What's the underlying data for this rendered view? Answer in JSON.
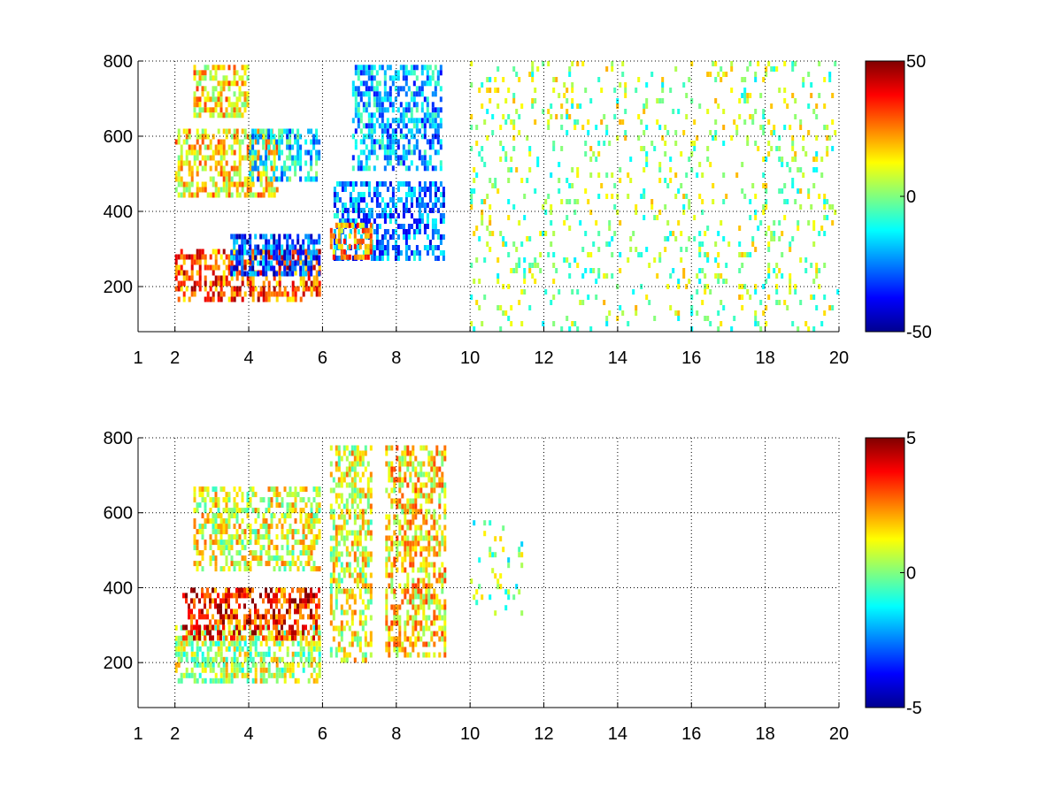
{
  "chart_data": [
    {
      "type": "heatmap",
      "title": "",
      "xlabel": "",
      "ylabel": "",
      "x_range": [
        1,
        20
      ],
      "y_range": [
        80,
        800
      ],
      "x_ticks": [
        1,
        2,
        4,
        6,
        8,
        10,
        12,
        14,
        16,
        18,
        20
      ],
      "x_tick_labels": [
        "1",
        "2",
        "4",
        "6",
        "8",
        "10",
        "12",
        "14",
        "16",
        "18",
        "20"
      ],
      "y_ticks": [
        200,
        400,
        600,
        800
      ],
      "y_tick_labels": [
        "200",
        "400",
        "600",
        "800"
      ],
      "grid": "dotted",
      "colormap": "jet",
      "colorbar": {
        "range": [
          -50,
          50
        ],
        "ticks": [
          -50,
          0,
          50
        ],
        "tick_labels": [
          "-50",
          "0",
          "50"
        ],
        "placement": "right"
      },
      "features": [
        {
          "x_range": [
            2.0,
            5.9
          ],
          "y_range": [
            170,
            300
          ],
          "value": 30
        },
        {
          "x_range": [
            3.5,
            5.9
          ],
          "y_range": [
            230,
            340
          ],
          "value": -30
        },
        {
          "x_range": [
            6.3,
            9.3
          ],
          "y_range": [
            270,
            480
          ],
          "value": -25
        },
        {
          "x_range": [
            6.2,
            7.3
          ],
          "y_range": [
            280,
            370
          ],
          "value": 25
        },
        {
          "x_range": [
            2.0,
            4.8
          ],
          "y_range": [
            450,
            620
          ],
          "value": 15
        },
        {
          "x_range": [
            4.0,
            5.9
          ],
          "y_range": [
            480,
            620
          ],
          "value": -15
        },
        {
          "x_range": [
            6.8,
            9.2
          ],
          "y_range": [
            520,
            790
          ],
          "value": -20
        },
        {
          "x_range": [
            2.5,
            4.0
          ],
          "y_range": [
            650,
            790
          ],
          "value": 15
        },
        {
          "x_range": [
            10.0,
            20.0
          ],
          "y_range": [
            80,
            800
          ],
          "value": 3
        }
      ]
    },
    {
      "type": "heatmap",
      "title": "",
      "xlabel": "",
      "ylabel": "",
      "x_range": [
        1,
        20
      ],
      "y_range": [
        80,
        800
      ],
      "x_ticks": [
        1,
        2,
        4,
        6,
        8,
        10,
        12,
        14,
        16,
        18,
        20
      ],
      "x_tick_labels": [
        "1",
        "2",
        "4",
        "6",
        "8",
        "10",
        "12",
        "14",
        "16",
        "18",
        "20"
      ],
      "y_ticks": [
        200,
        400,
        600,
        800
      ],
      "y_tick_labels": [
        "200",
        "400",
        "600",
        "800"
      ],
      "grid": "dotted",
      "colormap": "jet",
      "colorbar": {
        "range": [
          -5,
          5
        ],
        "ticks": [
          -5,
          0,
          5
        ],
        "tick_labels": [
          "-5",
          "0",
          "5"
        ],
        "placement": "right"
      },
      "features": [
        {
          "x_range": [
            2.0,
            5.9
          ],
          "y_range": [
            150,
            300
          ],
          "value": 0.5
        },
        {
          "x_range": [
            2.2,
            5.9
          ],
          "y_range": [
            260,
            400
          ],
          "value": 3.5
        },
        {
          "x_range": [
            2.5,
            5.9
          ],
          "y_range": [
            450,
            670
          ],
          "value": 1
        },
        {
          "x_range": [
            6.2,
            7.3
          ],
          "y_range": [
            200,
            780
          ],
          "value": 1
        },
        {
          "x_range": [
            7.7,
            9.3
          ],
          "y_range": [
            220,
            780
          ],
          "value": 1.5
        },
        {
          "x_range": [
            10.0,
            11.4
          ],
          "y_range": [
            330,
            580
          ],
          "value": 0
        }
      ]
    }
  ]
}
